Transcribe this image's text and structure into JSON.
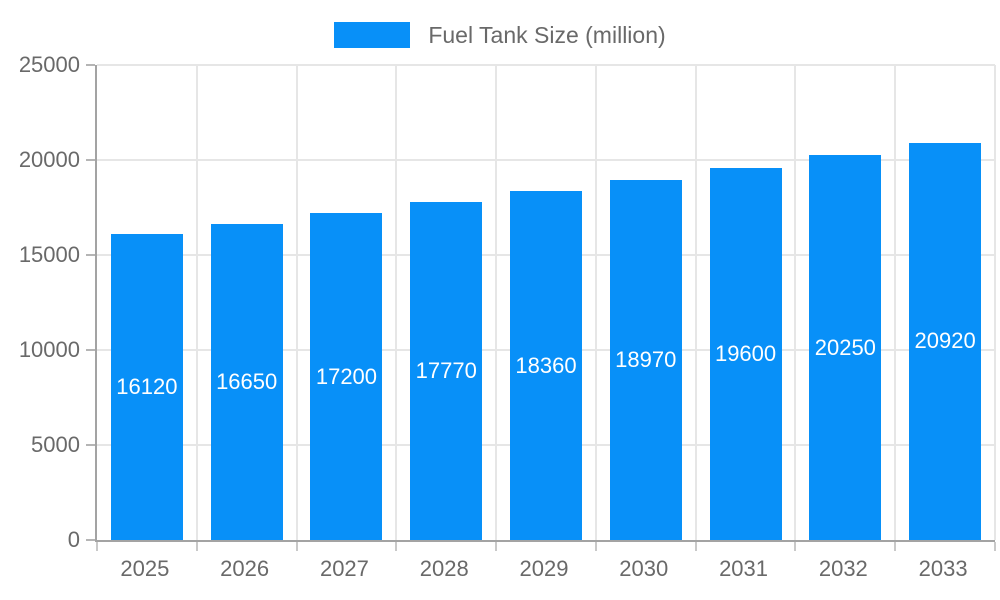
{
  "chart_data": {
    "type": "bar",
    "title": "Fuel Tank Size (million)",
    "legend": {
      "label": "Fuel Tank Size (million)",
      "position": "top"
    },
    "categories": [
      "2025",
      "2026",
      "2027",
      "2028",
      "2029",
      "2030",
      "2031",
      "2032",
      "2033"
    ],
    "series": [
      {
        "name": "Fuel Tank Size (million)",
        "values": [
          16120,
          16650,
          17200,
          17770,
          18360,
          18970,
          19600,
          20250,
          20920
        ]
      }
    ],
    "xlabel": "",
    "ylabel": "",
    "ylim": [
      0,
      25000
    ],
    "yticks": [
      0,
      5000,
      10000,
      15000,
      20000,
      25000
    ],
    "grid": true,
    "value_labels": "inside-center",
    "colors": {
      "bar": "#0890f8",
      "value_label": "#ffffff",
      "axis_text": "#696969",
      "gridline": "#e6e6e6",
      "axis_line": "#a3a3a3"
    }
  }
}
